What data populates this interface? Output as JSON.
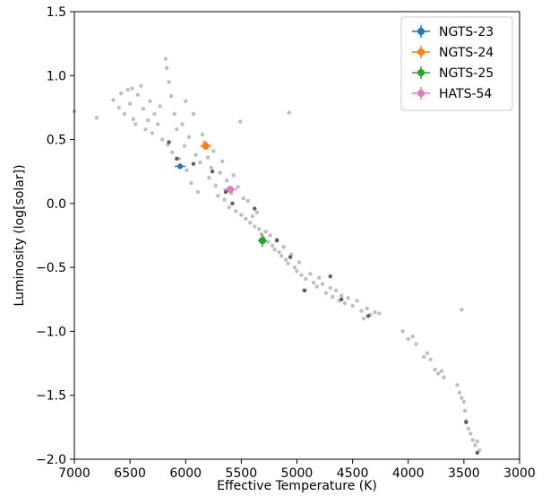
{
  "chart_data": {
    "type": "scatter",
    "title": "",
    "xlabel": "Effective Temperature (K)",
    "ylabel": "Luminosity (log[solar])",
    "xlim": [
      7000,
      3000
    ],
    "x_inverted": true,
    "ylim": [
      -2.0,
      1.5
    ],
    "x_ticks": [
      7000,
      6500,
      6000,
      5500,
      5000,
      4500,
      4000,
      3500,
      3000
    ],
    "x_tick_labels": [
      "7000",
      "6500",
      "6000",
      "5500",
      "5000",
      "4500",
      "4000",
      "3500",
      "3000"
    ],
    "y_ticks": [
      1.5,
      1.0,
      0.5,
      0.0,
      -0.5,
      -1.0,
      -1.5,
      -2.0
    ],
    "y_tick_labels": [
      "1.5",
      "1.0",
      "0.5",
      "0.0",
      "−0.5",
      "−1.0",
      "−1.5",
      "−2.0"
    ],
    "grid": false,
    "legend_position": "top-right",
    "background_sample": {
      "color": "#aaaaaa",
      "points": [
        [
          7000,
          0.72
        ],
        [
          6800,
          0.67
        ],
        [
          6650,
          0.81
        ],
        [
          6600,
          0.75
        ],
        [
          6580,
          0.86
        ],
        [
          6550,
          0.7
        ],
        [
          6520,
          0.89
        ],
        [
          6500,
          0.78
        ],
        [
          6480,
          0.9
        ],
        [
          6470,
          0.66
        ],
        [
          6450,
          0.62
        ],
        [
          6430,
          0.85
        ],
        [
          6400,
          0.92
        ],
        [
          6380,
          0.74
        ],
        [
          6360,
          0.58
        ],
        [
          6340,
          0.65
        ],
        [
          6320,
          0.8
        ],
        [
          6300,
          0.55
        ],
        [
          6280,
          0.7
        ],
        [
          6250,
          0.62
        ],
        [
          6230,
          0.76
        ],
        [
          6210,
          0.5
        ],
        [
          6180,
          1.13
        ],
        [
          6170,
          1.06
        ],
        [
          6160,
          0.46
        ],
        [
          6150,
          0.95
        ],
        [
          6130,
          0.84
        ],
        [
          6120,
          0.4
        ],
        [
          6100,
          0.7
        ],
        [
          6080,
          0.58
        ],
        [
          6060,
          0.35
        ],
        [
          6050,
          0.3
        ],
        [
          6030,
          0.62
        ],
        [
          6010,
          0.45
        ],
        [
          6000,
          0.8
        ],
        [
          5990,
          0.26
        ],
        [
          5970,
          0.52
        ],
        [
          5950,
          0.16
        ],
        [
          5930,
          0.7
        ],
        [
          5910,
          0.38
        ],
        [
          5890,
          0.09
        ],
        [
          5870,
          0.32
        ],
        [
          5850,
          0.54
        ],
        [
          5830,
          0.48
        ],
        [
          5810,
          0.44
        ],
        [
          5800,
          0.36
        ],
        [
          5790,
          0.2
        ],
        [
          5770,
          0.28
        ],
        [
          5750,
          0.41
        ],
        [
          5730,
          0.14
        ],
        [
          5710,
          0.06
        ],
        [
          5690,
          0.24
        ],
        [
          5670,
          0.33
        ],
        [
          5650,
          0.03
        ],
        [
          5630,
          0.18
        ],
        [
          5610,
          -0.03
        ],
        [
          5590,
          0.08
        ],
        [
          5570,
          0.22
        ],
        [
          5550,
          -0.06
        ],
        [
          5530,
          0.13
        ],
        [
          5510,
          0.64
        ],
        [
          5500,
          -0.09
        ],
        [
          5480,
          0.04
        ],
        [
          5460,
          -0.12
        ],
        [
          5440,
          0.02
        ],
        [
          5420,
          -0.15
        ],
        [
          5400,
          -0.1
        ],
        [
          5380,
          -0.18
        ],
        [
          5360,
          -0.07
        ],
        [
          5340,
          -0.2
        ],
        [
          5320,
          -0.24
        ],
        [
          5300,
          -0.27
        ],
        [
          5280,
          -0.22
        ],
        [
          5260,
          -0.3
        ],
        [
          5240,
          -0.25
        ],
        [
          5220,
          -0.33
        ],
        [
          5200,
          -0.36
        ],
        [
          5180,
          -0.28
        ],
        [
          5160,
          -0.38
        ],
        [
          5140,
          -0.41
        ],
        [
          5120,
          -0.34
        ],
        [
          5100,
          -0.44
        ],
        [
          5080,
          -0.47
        ],
        [
          5070,
          0.71
        ],
        [
          5050,
          -0.4
        ],
        [
          5020,
          -0.5
        ],
        [
          5000,
          -0.53
        ],
        [
          4980,
          -0.46
        ],
        [
          4960,
          -0.56
        ],
        [
          4940,
          -0.68
        ],
        [
          4920,
          -0.59
        ],
        [
          4880,
          -0.55
        ],
        [
          4850,
          -0.62
        ],
        [
          4820,
          -0.65
        ],
        [
          4800,
          -0.58
        ],
        [
          4770,
          -0.63
        ],
        [
          4740,
          -0.7
        ],
        [
          4700,
          -0.66
        ],
        [
          4680,
          -0.73
        ],
        [
          4650,
          -0.68
        ],
        [
          4620,
          -0.76
        ],
        [
          4600,
          -0.72
        ],
        [
          4570,
          -0.78
        ],
        [
          4540,
          -0.74
        ],
        [
          4500,
          -0.8
        ],
        [
          4460,
          -0.76
        ],
        [
          4420,
          -0.84
        ],
        [
          4400,
          -0.9
        ],
        [
          4370,
          -0.82
        ],
        [
          4340,
          -0.87
        ],
        [
          4300,
          -0.85
        ],
        [
          4260,
          -0.86
        ],
        [
          4050,
          -1.0
        ],
        [
          4000,
          -1.06
        ],
        [
          3960,
          -1.04
        ],
        [
          3930,
          -1.1
        ],
        [
          3860,
          -1.2
        ],
        [
          3830,
          -1.17
        ],
        [
          3800,
          -1.22
        ],
        [
          3760,
          -1.3
        ],
        [
          3730,
          -1.33
        ],
        [
          3700,
          -1.31
        ],
        [
          3680,
          -1.36
        ],
        [
          3560,
          -1.42
        ],
        [
          3540,
          -1.48
        ],
        [
          3520,
          -1.52
        ],
        [
          3500,
          -1.55
        ],
        [
          3490,
          -1.62
        ],
        [
          3480,
          -1.7
        ],
        [
          3460,
          -1.76
        ],
        [
          3440,
          -1.8
        ],
        [
          3420,
          -1.85
        ],
        [
          3400,
          -1.89
        ],
        [
          3380,
          -1.86
        ],
        [
          3360,
          -1.93
        ],
        [
          3520,
          -0.83
        ]
      ]
    },
    "dark_sample": {
      "color": "#444444",
      "points": [
        [
          6150,
          0.48
        ],
        [
          6080,
          0.35
        ],
        [
          5930,
          0.31
        ],
        [
          5760,
          0.25
        ],
        [
          5640,
          0.09
        ],
        [
          5580,
          0.0
        ],
        [
          5380,
          -0.04
        ],
        [
          5180,
          -0.29
        ],
        [
          5060,
          -0.42
        ],
        [
          4930,
          -0.68
        ],
        [
          4700,
          -0.57
        ],
        [
          4600,
          -0.75
        ],
        [
          4360,
          -0.88
        ],
        [
          3480,
          -1.71
        ],
        [
          3380,
          -1.95
        ]
      ]
    },
    "series": [
      {
        "name": "NGTS-23",
        "color": "#1f77b4",
        "x": 6050,
        "y": 0.29,
        "xerr": 50,
        "yerr": 0.02,
        "marker_size": 3
      },
      {
        "name": "NGTS-24",
        "color": "#ff7f0e",
        "x": 5820,
        "y": 0.45,
        "xerr": 50,
        "yerr": 0.03,
        "marker_size": 4
      },
      {
        "name": "NGTS-25",
        "color": "#2ca02c",
        "x": 5310,
        "y": -0.29,
        "xerr": 40,
        "yerr": 0.05,
        "marker_size": 4
      },
      {
        "name": "HATS-54",
        "color": "#e377c2",
        "x": 5600,
        "y": 0.11,
        "xerr": 60,
        "yerr": 0.02,
        "marker_size": 4
      }
    ]
  }
}
